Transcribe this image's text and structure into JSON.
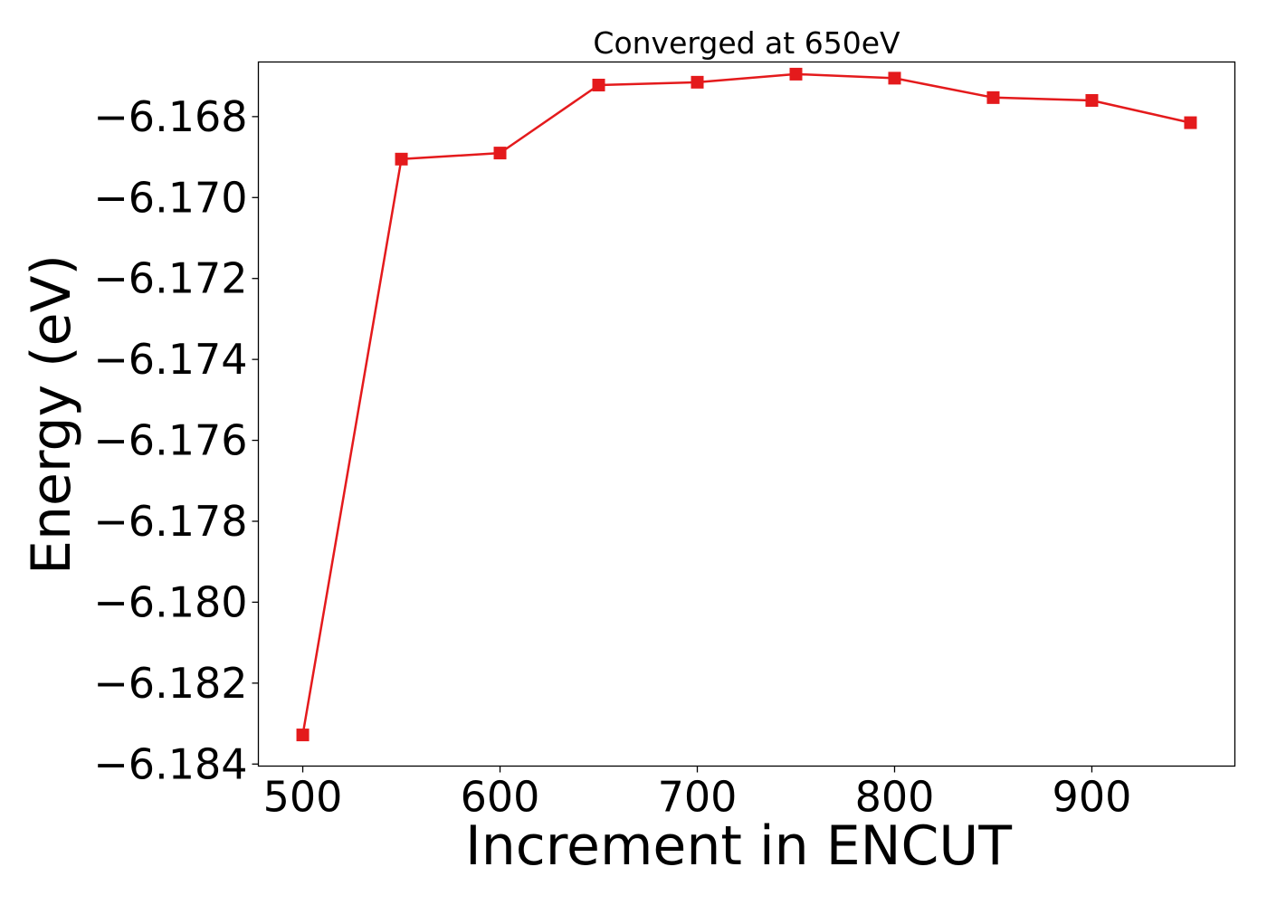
{
  "chart_data": {
    "type": "line",
    "title": "Converged at 650eV",
    "xlabel": "Increment in ENCUT",
    "ylabel": "Energy (eV)",
    "x": [
      500,
      550,
      600,
      650,
      700,
      750,
      800,
      850,
      900,
      950
    ],
    "series": [
      {
        "values": [
          -6.18328,
          -6.16905,
          -6.1689,
          -6.16722,
          -6.16715,
          -6.16695,
          -6.16705,
          -6.16753,
          -6.1676,
          -6.16815
        ],
        "color": "#e41a1c",
        "marker": "square"
      }
    ],
    "xlim": [
      477.5,
      972.5
    ],
    "ylim": [
      -6.18405,
      -6.16665
    ],
    "xticks": [
      500,
      600,
      700,
      800,
      900
    ],
    "xtick_labels": [
      "500",
      "600",
      "700",
      "800",
      "900"
    ],
    "yticks": [
      -6.184,
      -6.182,
      -6.18,
      -6.178,
      -6.176,
      -6.174,
      -6.172,
      -6.17,
      -6.168
    ],
    "ytick_labels": [
      "−6.184",
      "−6.182",
      "−6.180",
      "−6.178",
      "−6.176",
      "−6.174",
      "−6.172",
      "−6.170",
      "−6.168"
    ],
    "grid": false,
    "legend": false
  }
}
